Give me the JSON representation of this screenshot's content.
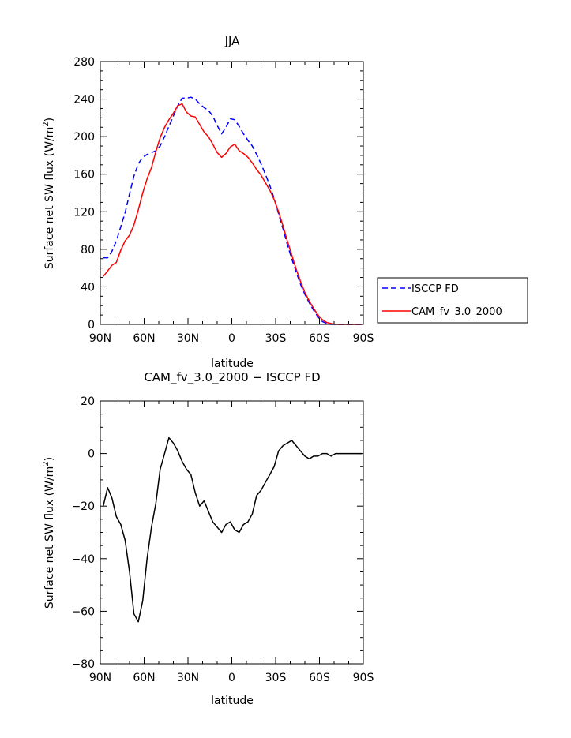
{
  "chart_data": [
    {
      "type": "line",
      "title": "JJA",
      "xlabel": "latitude",
      "ylabel": "Surface net SW flux (W/m²)",
      "ylabel_main": "Surface net SW flux (W/m",
      "ylabel_sup": "2",
      "ylabel_close": ")",
      "x_ticks": [
        90,
        60,
        30,
        0,
        -30,
        -60,
        -90
      ],
      "x_tick_labels": [
        "90N",
        "60N",
        "30N",
        "0",
        "30S",
        "60S",
        "90S"
      ],
      "xlim": [
        90,
        -90
      ],
      "ylim": [
        0,
        280
      ],
      "y_ticks": [
        0,
        40,
        80,
        120,
        160,
        200,
        240,
        280
      ],
      "y_tick_labels": [
        "0",
        "40",
        "80",
        "120",
        "160",
        "200",
        "240",
        "280"
      ],
      "legend_position": "right",
      "series": [
        {
          "name": "ISCCP FD",
          "color": "#0000ff",
          "style": "dashed",
          "x": [
            88,
            85,
            82,
            79,
            76,
            73,
            70,
            67,
            64,
            61,
            58,
            55,
            52,
            49,
            46,
            43,
            40,
            37,
            34,
            31,
            28,
            25,
            22,
            19,
            16,
            13,
            10,
            7,
            4,
            1,
            -2,
            -5,
            -8,
            -11,
            -14,
            -17,
            -20,
            -23,
            -26,
            -29,
            -32,
            -35,
            -38,
            -41,
            -44,
            -47,
            -50,
            -53,
            -56,
            -59,
            -62,
            -65,
            -68,
            -71,
            -74,
            -77,
            -80,
            -83,
            -86,
            -89
          ],
          "y": [
            71,
            71,
            78,
            89,
            104,
            119,
            139,
            158,
            171,
            178,
            181,
            183,
            185,
            190,
            200,
            211,
            222,
            233,
            241,
            241,
            242,
            240,
            235,
            231,
            228,
            222,
            212,
            203,
            210,
            219,
            218,
            211,
            203,
            196,
            190,
            181,
            171,
            160,
            148,
            134,
            118,
            102,
            85,
            70,
            56,
            43,
            32,
            23,
            15,
            8,
            3,
            1,
            0,
            0,
            0,
            0,
            0,
            0,
            0,
            0
          ]
        },
        {
          "name": "CAM_fv_3.0_2000",
          "color": "#ff0000",
          "style": "solid",
          "x": [
            88,
            85,
            82,
            79,
            76,
            73,
            70,
            67,
            64,
            61,
            58,
            55,
            52,
            49,
            46,
            43,
            40,
            37,
            34,
            31,
            28,
            25,
            22,
            19,
            16,
            13,
            10,
            7,
            4,
            1,
            -2,
            -5,
            -8,
            -11,
            -14,
            -17,
            -20,
            -23,
            -26,
            -29,
            -32,
            -35,
            -38,
            -41,
            -44,
            -47,
            -50,
            -53,
            -56,
            -59,
            -62,
            -65,
            -68,
            -71,
            -74,
            -77,
            -80,
            -83,
            -86,
            -89
          ],
          "y": [
            51,
            57,
            63,
            66,
            79,
            89,
            95,
            106,
            122,
            140,
            155,
            167,
            184,
            199,
            210,
            218,
            225,
            233,
            235,
            226,
            222,
            221,
            213,
            205,
            200,
            192,
            183,
            178,
            182,
            189,
            192,
            185,
            182,
            178,
            172,
            165,
            159,
            151,
            143,
            133,
            120,
            105,
            89,
            74,
            59,
            46,
            34,
            25,
            17,
            10,
            5,
            2,
            1,
            0,
            0,
            0,
            0,
            0,
            0,
            0
          ]
        }
      ]
    },
    {
      "type": "line",
      "title": "CAM_fv_3.0_2000 − ISCCP FD",
      "xlabel": "latitude",
      "ylabel": "Surface net SW flux (W/m²)",
      "ylabel_main": "Surface net SW flux (W/m",
      "ylabel_sup": "2",
      "ylabel_close": ")",
      "x_ticks": [
        90,
        60,
        30,
        0,
        -30,
        -60,
        -90
      ],
      "x_tick_labels": [
        "90N",
        "60N",
        "30N",
        "0",
        "30S",
        "60S",
        "90S"
      ],
      "xlim": [
        90,
        -90
      ],
      "ylim": [
        -80,
        20
      ],
      "y_ticks": [
        -80,
        -60,
        -40,
        -20,
        0,
        20
      ],
      "y_tick_labels": [
        "−80",
        "−60",
        "−40",
        "−20",
        "0",
        "20"
      ],
      "series": [
        {
          "color": "#000000",
          "style": "solid",
          "x": [
            88,
            85,
            82,
            79,
            76,
            73,
            70,
            67,
            64,
            61,
            58,
            55,
            52,
            49,
            46,
            43,
            40,
            37,
            34,
            31,
            28,
            25,
            22,
            19,
            16,
            13,
            10,
            7,
            4,
            1,
            -2,
            -5,
            -8,
            -11,
            -14,
            -17,
            -20,
            -23,
            -26,
            -29,
            -32,
            -35,
            -38,
            -41,
            -44,
            -47,
            -50,
            -53,
            -56,
            -59,
            -62,
            -65,
            -68,
            -71,
            -74,
            -77,
            -80,
            -83,
            -86,
            -89
          ],
          "y": [
            -20,
            -13,
            -17,
            -24,
            -27,
            -33,
            -45,
            -61,
            -64,
            -56,
            -40,
            -28,
            -19,
            -6,
            0,
            6,
            4,
            1,
            -3,
            -6,
            -8,
            -15,
            -20,
            -18,
            -22,
            -26,
            -28,
            -30,
            -27,
            -26,
            -29,
            -30,
            -27,
            -26,
            -23,
            -16,
            -14,
            -11,
            -8,
            -5,
            1,
            3,
            4,
            5,
            3,
            1,
            -1,
            -2,
            -1,
            -1,
            0,
            0,
            -1,
            0,
            0,
            0,
            0,
            0,
            0,
            0
          ]
        }
      ]
    }
  ]
}
